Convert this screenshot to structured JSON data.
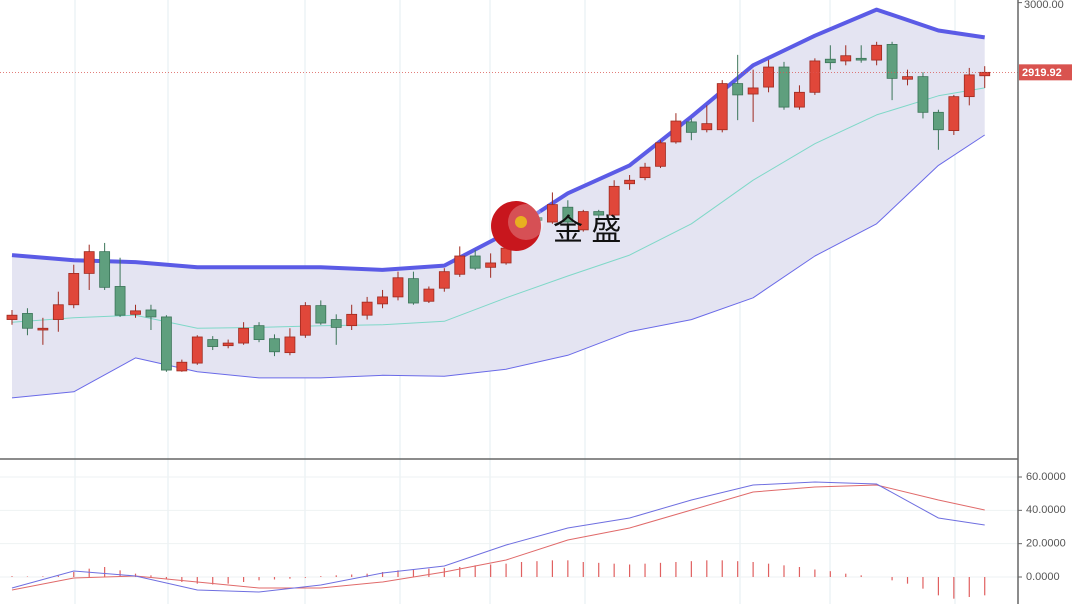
{
  "chart_data": [
    {
      "type": "candlestick",
      "up_color": "#e0473a",
      "down_color": "#5f9f7e",
      "open": [
        2636,
        2643,
        2624,
        2636,
        2653,
        2689,
        2714,
        2674,
        2642,
        2647,
        2639,
        2577,
        2586,
        2613,
        2606,
        2609,
        2629,
        2614,
        2598,
        2618,
        2652,
        2636,
        2629,
        2641,
        2654,
        2662,
        2683,
        2657,
        2672,
        2688,
        2709,
        2696,
        2701,
        2746,
        2753,
        2748,
        2765,
        2739,
        2760,
        2756,
        2792,
        2799,
        2812,
        2840,
        2863,
        2854,
        2854,
        2907,
        2895,
        2903,
        2926,
        2880,
        2897,
        2935,
        2933,
        2936,
        2934,
        2952,
        2912,
        2915,
        2874,
        2853,
        2892,
        2916
      ],
      "high": [
        2647,
        2649,
        2638,
        2668,
        2699,
        2722,
        2724,
        2707,
        2653,
        2653,
        2641,
        2590,
        2618,
        2617,
        2613,
        2633,
        2633,
        2619,
        2626,
        2656,
        2658,
        2642,
        2653,
        2662,
        2670,
        2691,
        2691,
        2674,
        2695,
        2720,
        2716,
        2712,
        2727,
        2762,
        2756,
        2782,
        2773,
        2762,
        2762,
        2796,
        2802,
        2816,
        2842,
        2873,
        2867,
        2882,
        2911,
        2940,
        2923,
        2934,
        2932,
        2905,
        2936,
        2951,
        2951,
        2951,
        2955,
        2955,
        2923,
        2920,
        2877,
        2894,
        2925,
        2927
      ],
      "low": [
        2630,
        2618,
        2607,
        2622,
        2649,
        2670,
        2670,
        2639,
        2638,
        2624,
        2576,
        2576,
        2584,
        2601,
        2603,
        2607,
        2610,
        2594,
        2595,
        2615,
        2630,
        2607,
        2624,
        2636,
        2649,
        2658,
        2653,
        2655,
        2668,
        2685,
        2693,
        2684,
        2699,
        2733,
        2748,
        2746,
        2746,
        2737,
        2750,
        2754,
        2785,
        2796,
        2810,
        2838,
        2842,
        2851,
        2851,
        2865,
        2863,
        2897,
        2877,
        2877,
        2894,
        2923,
        2928,
        2931,
        2928,
        2888,
        2905,
        2867,
        2831,
        2848,
        2882,
        2902
      ],
      "close": [
        2641,
        2626,
        2626,
        2653,
        2689,
        2714,
        2673,
        2641,
        2646,
        2639,
        2578,
        2587,
        2616,
        2605,
        2609,
        2626,
        2613,
        2599,
        2616,
        2652,
        2632,
        2627,
        2642,
        2656,
        2662,
        2684,
        2655,
        2671,
        2691,
        2709,
        2695,
        2701,
        2718,
        2756,
        2750,
        2768,
        2748,
        2760,
        2756,
        2789,
        2796,
        2811,
        2839,
        2864,
        2851,
        2861,
        2907,
        2894,
        2902,
        2926,
        2880,
        2897,
        2933,
        2931,
        2939,
        2934,
        2951,
        2913,
        2915,
        2874,
        2854,
        2892,
        2917,
        2919.92
      ],
      "band_x": [
        0,
        4,
        8,
        12,
        16,
        20,
        24,
        28,
        32,
        36,
        40,
        44,
        48,
        52,
        56,
        60,
        63
      ],
      "upper": {
        "color": "#5b5be6",
        "values": [
          2710,
          2704,
          2702,
          2696,
          2696,
          2696,
          2693,
          2698,
          2735,
          2781,
          2813,
          2869,
          2928,
          2962,
          2992,
          2968,
          2960
        ]
      },
      "middle": {
        "color": "#7fd8c8",
        "values": [
          2633,
          2638,
          2641,
          2626,
          2627,
          2629,
          2630,
          2634,
          2661,
          2686,
          2710,
          2746,
          2796,
          2838,
          2871,
          2893,
          2902
        ]
      },
      "lower": {
        "color": "#6a6ae8",
        "values": [
          2546,
          2553,
          2592,
          2576,
          2569,
          2569,
          2572,
          2571,
          2579,
          2595,
          2622,
          2636,
          2661,
          2709,
          2746,
          2813,
          2848
        ]
      },
      "band_fill": "#e4e4f2",
      "ylim": [
        2477,
        3003
      ],
      "yticks": [
        {
          "value": 3000,
          "label": "3000.00"
        }
      ],
      "last_price": {
        "value": 2919.92,
        "label": "2919.92",
        "color": "#d9534f"
      },
      "watermark": "金 盛"
    },
    {
      "type": "macd",
      "histogram": {
        "color": "#e06060",
        "values": [
          0.5,
          0.3,
          0.4,
          0.8,
          3,
          5,
          6,
          4,
          2,
          1,
          -1,
          -3,
          -4,
          -4.5,
          -4,
          -3,
          -2,
          -1.5,
          -1,
          -0.5,
          0.5,
          1,
          1.5,
          2,
          3,
          4,
          4.5,
          5,
          5.5,
          6,
          7,
          7.5,
          8,
          9,
          9.5,
          10,
          10,
          9,
          8.5,
          8,
          7.5,
          8,
          8.5,
          9,
          9.5,
          10,
          10,
          9.5,
          9,
          8,
          7,
          6,
          4.5,
          3.5,
          2,
          1,
          0,
          -2,
          -4,
          -7,
          -11,
          -13,
          -12,
          -11
        ]
      },
      "x": [
        0,
        4,
        8,
        12,
        16,
        20,
        24,
        28,
        32,
        36,
        40,
        44,
        48,
        52,
        56,
        60,
        63
      ],
      "dif": {
        "color": "#6f6fe0",
        "values": [
          -6.6,
          3.6,
          0.6,
          -7.8,
          -9,
          -4.8,
          2.4,
          6.6,
          19.2,
          29.4,
          35.4,
          46.2,
          55.2,
          57,
          55.8,
          35.4,
          31.2
        ]
      },
      "dea": {
        "color": "#e06a6a",
        "values": [
          -7.8,
          -0.6,
          0.6,
          -3,
          -6.6,
          -6.6,
          -3,
          3,
          10.2,
          22.2,
          29.4,
          40.2,
          51,
          54,
          55.2,
          46.2,
          40.2
        ]
      },
      "ylim": [
        -16.2,
        69
      ],
      "yticks": [
        {
          "value": 60,
          "label": "60.0000"
        },
        {
          "value": 40,
          "label": "40.0000"
        },
        {
          "value": 20,
          "label": "20.0000"
        },
        {
          "value": 0,
          "label": "0.0000"
        }
      ]
    }
  ]
}
